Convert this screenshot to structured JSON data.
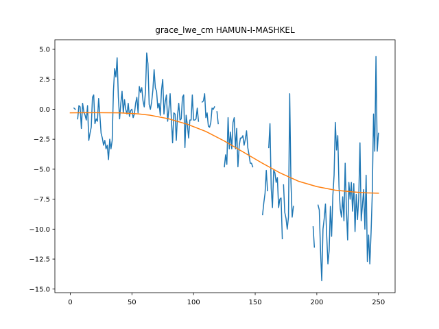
{
  "chart_data": {
    "type": "line",
    "title": "grace_lwe_cm HAMUN-I-MASHKEL",
    "xlabel": "",
    "ylabel": "",
    "xlim": [
      -12.5,
      263.5
    ],
    "ylim": [
      -15.3,
      5.8
    ],
    "grid": false,
    "legend": "none",
    "x_ticks": [
      0,
      50,
      100,
      150,
      200,
      250
    ],
    "x_tick_labels": [
      "0",
      "50",
      "100",
      "150",
      "200",
      "250"
    ],
    "y_ticks": [
      5.0,
      2.5,
      0.0,
      -2.5,
      -5.0,
      -7.5,
      -10.0,
      -12.5,
      -15.0
    ],
    "y_tick_labels": [
      "5.0",
      "2.5",
      "0.0",
      "−2.5",
      "−5.0",
      "−7.5",
      "−10.0",
      "−12.5",
      "−15.0"
    ],
    "series": [
      {
        "color": "#1f77b4",
        "segments": [
          [
            [
              3,
              0.1
            ],
            [
              4,
              0.0
            ]
          ],
          [
            [
              6,
              -0.8
            ],
            [
              7,
              0.3
            ],
            [
              8,
              0.2
            ],
            [
              9,
              -1.6
            ],
            [
              10,
              0.5
            ],
            [
              11,
              -0.2
            ],
            [
              12,
              -0.5
            ],
            [
              13,
              -0.9
            ],
            [
              14,
              0.3
            ],
            [
              15,
              -2.6
            ],
            [
              16,
              -2.0
            ],
            [
              17,
              -1.5
            ],
            [
              18,
              1.0
            ],
            [
              19,
              1.2
            ],
            [
              20,
              -1.2
            ],
            [
              21,
              -0.8
            ],
            [
              22,
              -1.0
            ],
            [
              23,
              0.9
            ],
            [
              24,
              -0.5
            ],
            [
              25,
              -2.0
            ],
            [
              26,
              -2.4
            ],
            [
              27,
              -3.0
            ],
            [
              28,
              -2.6
            ],
            [
              29,
              -3.3
            ],
            [
              30,
              -3.0
            ],
            [
              31,
              -4.2
            ],
            [
              32,
              -2.5
            ],
            [
              33,
              -3.3
            ],
            [
              34,
              -2.6
            ],
            [
              35,
              1.5
            ],
            [
              36,
              3.4
            ],
            [
              37,
              2.7
            ],
            [
              38,
              4.3
            ],
            [
              39,
              1.0
            ],
            [
              40,
              -0.8
            ],
            [
              41,
              0.5
            ],
            [
              42,
              1.5
            ],
            [
              43,
              -0.3
            ],
            [
              44,
              0.8
            ],
            [
              45,
              0.0
            ],
            [
              46,
              -0.4
            ],
            [
              47,
              0.5
            ],
            [
              48,
              -0.6
            ],
            [
              49,
              -0.1
            ],
            [
              50,
              0.0
            ],
            [
              51,
              -0.7
            ],
            [
              52,
              -0.4
            ],
            [
              53,
              0.5
            ],
            [
              54,
              1.0
            ],
            [
              55,
              -0.3
            ],
            [
              56,
              1.9
            ],
            [
              57,
              1.4
            ],
            [
              58,
              1.8
            ],
            [
              59,
              0.7
            ],
            [
              60,
              0.2
            ],
            [
              61,
              1.5
            ],
            [
              62,
              4.7
            ],
            [
              63,
              3.8
            ],
            [
              64,
              0.4
            ],
            [
              65,
              0.0
            ],
            [
              66,
              0.6
            ],
            [
              67,
              1.6
            ],
            [
              68,
              3.3
            ],
            [
              69,
              1.8
            ],
            [
              70,
              1.5
            ],
            [
              71,
              0.1
            ],
            [
              72,
              0.5
            ],
            [
              73,
              -0.5
            ],
            [
              74,
              1.6
            ],
            [
              75,
              2.5
            ],
            [
              76,
              -0.4
            ],
            [
              77,
              0.6
            ],
            [
              78,
              1.2
            ],
            [
              79,
              -1.0
            ],
            [
              80,
              0.0
            ],
            [
              81,
              1.3
            ],
            [
              82,
              -0.8
            ],
            [
              83,
              -2.8
            ],
            [
              84,
              -0.3
            ],
            [
              85,
              -0.4
            ],
            [
              86,
              -2.6
            ],
            [
              87,
              -0.5
            ],
            [
              88,
              0.5
            ],
            [
              89,
              -0.9
            ],
            [
              90,
              -0.8
            ],
            [
              91,
              1.0
            ],
            [
              92,
              1.2
            ],
            [
              93,
              -3.2
            ],
            [
              94,
              -0.5
            ],
            [
              95,
              -1.3
            ],
            [
              96,
              -2.4
            ],
            [
              97,
              -0.9
            ],
            [
              98,
              -0.9
            ],
            [
              99,
              1.2
            ],
            [
              100,
              -0.9
            ],
            [
              101,
              -0.9
            ],
            [
              102,
              -0.8
            ],
            [
              103,
              0.1
            ],
            [
              104,
              -1.0
            ]
          ],
          [
            [
              107,
              0.6
            ],
            [
              108,
              0.7
            ],
            [
              109,
              1.3
            ],
            [
              110,
              -0.7
            ],
            [
              111,
              -0.3
            ],
            [
              112,
              -1.4
            ],
            [
              113,
              -1.5
            ],
            [
              114,
              -1.1
            ],
            [
              115,
              0.1
            ],
            [
              116,
              0.0
            ],
            [
              117,
              0.2
            ]
          ],
          [
            [
              119,
              -0.2
            ],
            [
              120,
              -1.2
            ]
          ],
          [
            [
              125,
              -4.8
            ],
            [
              126,
              -3.8
            ],
            [
              127,
              -4.6
            ],
            [
              128,
              -0.7
            ],
            [
              129,
              -3.3
            ],
            [
              130,
              -1.9
            ],
            [
              131,
              -3.3
            ],
            [
              132,
              -1.1
            ],
            [
              133,
              -0.7
            ],
            [
              134,
              -3.3
            ],
            [
              135,
              -1.6
            ],
            [
              136,
              -4.8
            ],
            [
              137,
              -3.1
            ],
            [
              138,
              -2.4
            ],
            [
              139,
              -2.4
            ],
            [
              140,
              -2.2
            ],
            [
              141,
              -3.0
            ],
            [
              142,
              -2.5
            ],
            [
              143,
              -1.8
            ],
            [
              144,
              -3.2
            ],
            [
              145,
              -3.8
            ],
            [
              146,
              -4.5
            ],
            [
              147,
              -4.5
            ],
            [
              148,
              -4.8
            ]
          ],
          [
            [
              156,
              -8.8
            ],
            [
              157,
              -7.8
            ],
            [
              158,
              -7.0
            ],
            [
              159,
              -5.1
            ],
            [
              160,
              -6.8
            ]
          ],
          [
            [
              161,
              -3.2
            ],
            [
              162,
              -1.2
            ],
            [
              163,
              -6.6
            ],
            [
              164,
              -8.2
            ],
            [
              165,
              -5.1
            ],
            [
              166,
              -5.3
            ],
            [
              167,
              -6.1
            ],
            [
              168,
              -5.7
            ],
            [
              169,
              -8.2
            ],
            [
              170,
              -7.5
            ],
            [
              171,
              -7.4
            ],
            [
              172,
              -10.8
            ]
          ],
          [
            [
              173,
              -6.3
            ],
            [
              174,
              -8.6
            ],
            [
              175,
              -9.1
            ],
            [
              176,
              -10.0
            ],
            [
              177,
              -9.0
            ],
            [
              178,
              1.3
            ],
            [
              179,
              -6.0
            ],
            [
              180,
              -9.0
            ],
            [
              181,
              -8.1
            ]
          ],
          [
            [
              197,
              -9.8
            ],
            [
              198,
              -11.5
            ]
          ],
          [
            [
              201,
              -8.0
            ],
            [
              202,
              -8.4
            ],
            [
              203,
              -11.8
            ],
            [
              204,
              -14.3
            ],
            [
              205,
              -10.0
            ],
            [
              206,
              -9.1
            ],
            [
              207,
              -7.9
            ],
            [
              208,
              -10.5
            ],
            [
              209,
              -12.9
            ],
            [
              210,
              -11.8
            ],
            [
              211,
              -8.1
            ],
            [
              212,
              -10.6
            ],
            [
              213,
              -7.2
            ],
            [
              214,
              -5.5
            ],
            [
              215,
              -1.1
            ],
            [
              216,
              -3.4
            ],
            [
              217,
              -2.2
            ],
            [
              218,
              -6.5
            ],
            [
              219,
              -8.3
            ],
            [
              220,
              -9.0
            ],
            [
              221,
              -7.3
            ],
            [
              222,
              -9.3
            ],
            [
              223,
              -4.5
            ],
            [
              224,
              -8.4
            ],
            [
              225,
              -10.9
            ],
            [
              226,
              -6.1
            ],
            [
              227,
              -7.5
            ],
            [
              228,
              -6.1
            ],
            [
              229,
              -8.5
            ],
            [
              230,
              -6.2
            ],
            [
              231,
              -10.2
            ],
            [
              232,
              -7.1
            ],
            [
              233,
              -9.2
            ],
            [
              234,
              -7.4
            ],
            [
              235,
              -2.8
            ],
            [
              236,
              -9.3
            ],
            [
              237,
              -8.0
            ],
            [
              238,
              -6.7
            ],
            [
              239,
              -10.0
            ],
            [
              240,
              -5.5
            ],
            [
              241,
              -12.7
            ],
            [
              242,
              -10.5
            ],
            [
              243,
              -12.9
            ],
            [
              244,
              -10.3
            ],
            [
              245,
              -7.0
            ],
            [
              246,
              -0.4
            ],
            [
              247,
              -3.5
            ],
            [
              248,
              4.4
            ],
            [
              249,
              -3.5
            ],
            [
              250,
              -2.0
            ]
          ]
        ]
      },
      {
        "color": "#ff7f0e",
        "points": [
          [
            0,
            -0.3
          ],
          [
            20,
            -0.28
          ],
          [
            40,
            -0.3
          ],
          [
            55,
            -0.38
          ],
          [
            65,
            -0.5
          ],
          [
            80,
            -0.8
          ],
          [
            95,
            -1.25
          ],
          [
            110,
            -1.85
          ],
          [
            125,
            -2.65
          ],
          [
            140,
            -3.55
          ],
          [
            155,
            -4.45
          ],
          [
            170,
            -5.3
          ],
          [
            185,
            -6.0
          ],
          [
            200,
            -6.45
          ],
          [
            215,
            -6.75
          ],
          [
            230,
            -6.9
          ],
          [
            240,
            -6.97
          ],
          [
            250,
            -7.0
          ]
        ]
      }
    ]
  }
}
